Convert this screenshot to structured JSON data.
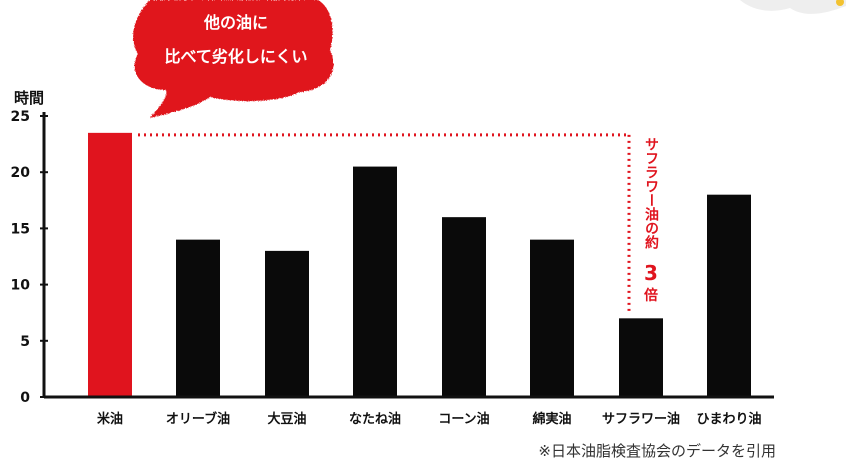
{
  "callout": {
    "line1": "他の油に",
    "line2": "比べて劣化しにくい"
  },
  "annotation": {
    "part1": "サフラワー油の約",
    "number": "3",
    "part2": "倍"
  },
  "source_note": "※日本油脂検査協会のデータを引用",
  "colors": {
    "highlight": "#e0141e",
    "bar": "#0a0a0a",
    "axis": "#111111"
  },
  "chart_data": {
    "type": "bar",
    "ylabel": "時間",
    "ylim": [
      0,
      25
    ],
    "yticks": [
      0,
      5,
      10,
      15,
      20,
      25
    ],
    "categories": [
      "米油",
      "オリーブ油",
      "大豆油",
      "なたね油",
      "コーン油",
      "綿実油",
      "サフラワー油",
      "ひまわり油"
    ],
    "values": [
      23.5,
      14,
      13,
      20.5,
      16,
      14,
      7,
      18
    ],
    "highlight_category": "米油",
    "reference": {
      "from": "米油",
      "to": "サフラワー油",
      "style": "dotted"
    }
  }
}
